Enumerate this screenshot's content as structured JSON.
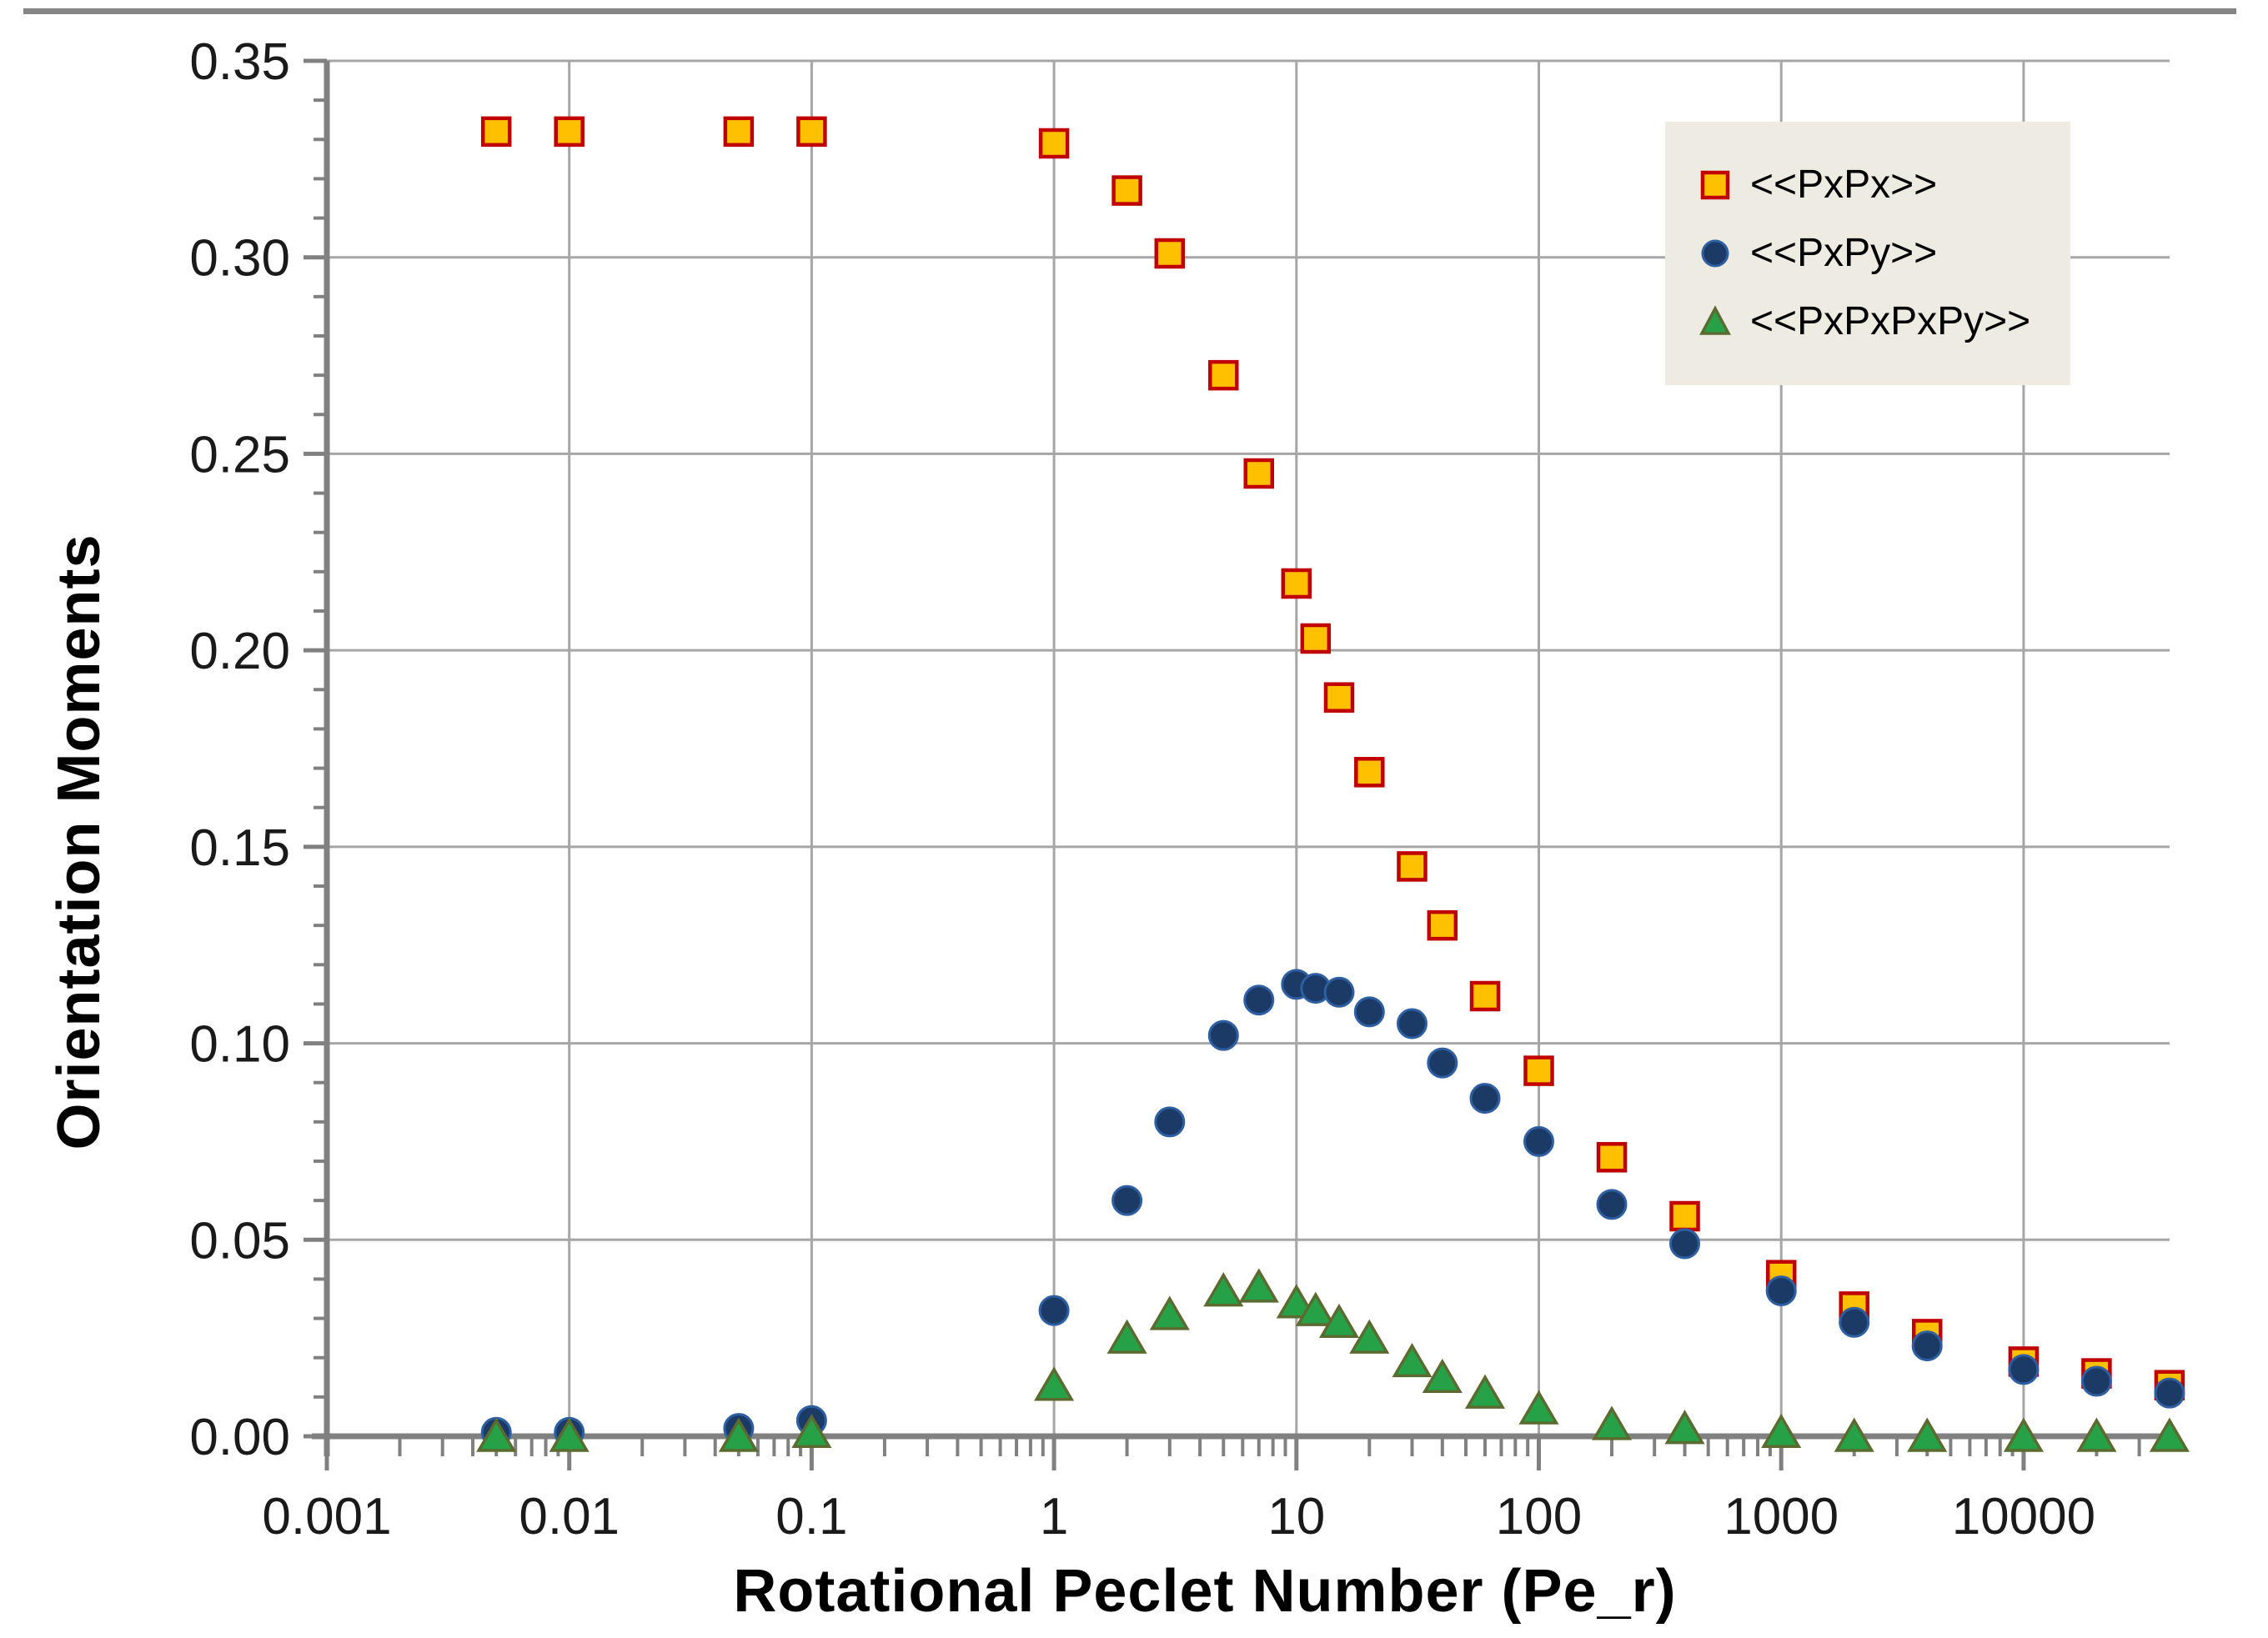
{
  "page": {
    "background": "#FFFFFF",
    "top_rule_color": "#858585"
  },
  "chart_data": {
    "type": "scatter",
    "title": "",
    "x_axis": {
      "label": "Rotational Peclet Number (Pe_r)",
      "scale": "log",
      "min": 0.001,
      "max": 40000,
      "tick_values": [
        0.001,
        0.01,
        0.1,
        1,
        10,
        100,
        1000,
        10000
      ],
      "tick_labels": [
        "0.001",
        "0.01",
        "0.1",
        "1",
        "10",
        "100",
        "1000",
        "10000"
      ]
    },
    "y_axis": {
      "label": "Orientation Moments",
      "scale": "linear",
      "min": 0.0,
      "max": 0.35,
      "major_step": 0.05,
      "minor_step": 0.01,
      "tick_labels": [
        "0.00",
        "0.05",
        "0.10",
        "0.15",
        "0.20",
        "0.25",
        "0.30",
        "0.35"
      ]
    },
    "grid": true,
    "legend_position": "top-right",
    "colors": {
      "grid": "#A6A6A6",
      "axis": "#808080",
      "tick_text": "#1a1a1a",
      "legend_bg": "#EEEBE2"
    },
    "x": [
      0.005,
      0.01,
      0.05,
      0.1,
      1,
      2,
      3,
      5,
      7,
      10,
      12,
      15,
      20,
      30,
      40,
      60,
      100,
      200,
      400,
      1000,
      2000,
      4000,
      10000,
      20000,
      40000
    ],
    "series": [
      {
        "name": "<<PxPx>>",
        "marker": "square",
        "fill": "#FFC000",
        "stroke": "#C00000",
        "values": [
          0.332,
          0.332,
          0.332,
          0.332,
          0.329,
          0.317,
          0.301,
          0.27,
          0.245,
          0.217,
          0.203,
          0.188,
          0.169,
          0.145,
          0.13,
          0.112,
          0.093,
          0.071,
          0.056,
          0.041,
          0.033,
          0.026,
          0.019,
          0.016,
          0.013
        ]
      },
      {
        "name": "<<PxPy>>",
        "marker": "circle",
        "fill": "#1B3A66",
        "stroke": "#2E5FA3",
        "values": [
          0.001,
          0.001,
          0.002,
          0.004,
          0.032,
          0.06,
          0.08,
          0.102,
          0.111,
          0.115,
          0.114,
          0.113,
          0.108,
          0.105,
          0.095,
          0.086,
          0.075,
          0.059,
          0.049,
          0.037,
          0.029,
          0.023,
          0.017,
          0.014,
          0.011
        ]
      },
      {
        "name": "<<PxPxPxPy>>",
        "marker": "triangle",
        "fill": "#26A147",
        "stroke": "#5B6B2F",
        "values": [
          0.0,
          0.0,
          0.0,
          0.001,
          0.013,
          0.025,
          0.031,
          0.037,
          0.038,
          0.034,
          0.032,
          0.029,
          0.025,
          0.019,
          0.015,
          0.011,
          0.007,
          0.003,
          0.002,
          0.001,
          0.0,
          0.0,
          0.0,
          0.0,
          0.0
        ]
      }
    ]
  }
}
